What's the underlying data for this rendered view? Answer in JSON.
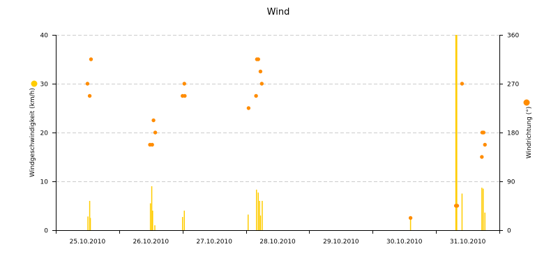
{
  "chart_data": {
    "type": "bar",
    "title": "Wind",
    "ylabel": "Windgeschwindigkeit (km/h)",
    "y2label": "Windrichtung (°)",
    "ylim": [
      0,
      40
    ],
    "y2lim": [
      0,
      360
    ],
    "yticks": [
      0,
      10,
      20,
      30,
      40
    ],
    "y2ticks": [
      0,
      90,
      180,
      270,
      360
    ],
    "xlim": [
      "25.10.2010 00:00",
      "31.10.2010 23:59"
    ],
    "xtick_labels": [
      "25.10.2010",
      "26.10.2010",
      "27.10.2010",
      "28.10.2010",
      "29.10.2010",
      "30.10.2010",
      "31.10.2010"
    ],
    "grid": true,
    "legend": "axis markers (left: speed, right: direction)",
    "colors": {
      "speed": "#ffcc00",
      "direction": "#ff8c00",
      "grid": "#cccccc",
      "axis": "#000000"
    },
    "series": [
      {
        "type": "bar",
        "axis": "left",
        "values": [
          {
            "x": "25.10.2010 12:10",
            "y": 2.8
          },
          {
            "x": "25.10.2010 12:50",
            "y": 6.0
          },
          {
            "x": "25.10.2010 13:05",
            "y": 2.5
          },
          {
            "x": "26.10.2010 11:50",
            "y": 5.5
          },
          {
            "x": "26.10.2010 12:20",
            "y": 9.0
          },
          {
            "x": "26.10.2010 12:40",
            "y": 4.0
          },
          {
            "x": "26.10.2010 13:30",
            "y": 1.0
          },
          {
            "x": "27.10.2010 00:00",
            "y": 2.7
          },
          {
            "x": "27.10.2010 00:40",
            "y": 4.0
          },
          {
            "x": "28.10.2010 00:50",
            "y": 3.2
          },
          {
            "x": "28.10.2010 04:00",
            "y": 8.3
          },
          {
            "x": "28.10.2010 04:40",
            "y": 7.7
          },
          {
            "x": "28.10.2010 05:10",
            "y": 6.0
          },
          {
            "x": "28.10.2010 05:30",
            "y": 3.0
          },
          {
            "x": "28.10.2010 06:10",
            "y": 6.0
          },
          {
            "x": "30.10.2010 14:20",
            "y": 2.5
          },
          {
            "x": "31.10.2010 07:30",
            "y": 40.0
          },
          {
            "x": "31.10.2010 07:50",
            "y": 40.0
          },
          {
            "x": "31.10.2010 09:50",
            "y": 7.5
          },
          {
            "x": "31.10.2010 17:20",
            "y": 8.7
          },
          {
            "x": "31.10.2010 17:50",
            "y": 8.5
          },
          {
            "x": "31.10.2010 18:30",
            "y": 3.6
          }
        ]
      },
      {
        "type": "scatter",
        "axis": "right",
        "values": [
          {
            "x": "25.10.2010 12:00",
            "y": 270
          },
          {
            "x": "25.10.2010 12:50",
            "y": 247.5
          },
          {
            "x": "25.10.2010 13:20",
            "y": 315
          },
          {
            "x": "26.10.2010 11:40",
            "y": 157.5
          },
          {
            "x": "26.10.2010 12:30",
            "y": 157.5
          },
          {
            "x": "26.10.2010 13:00",
            "y": 202.5
          },
          {
            "x": "26.10.2010 13:40",
            "y": 180
          },
          {
            "x": "27.10.2010 00:00",
            "y": 247.5
          },
          {
            "x": "27.10.2010 00:40",
            "y": 270
          },
          {
            "x": "27.10.2010 00:50",
            "y": 247.5
          },
          {
            "x": "28.10.2010 01:00",
            "y": 225
          },
          {
            "x": "28.10.2010 03:50",
            "y": 247.5
          },
          {
            "x": "28.10.2010 04:10",
            "y": 315
          },
          {
            "x": "28.10.2010 04:40",
            "y": 315
          },
          {
            "x": "28.10.2010 05:30",
            "y": 292.5
          },
          {
            "x": "28.10.2010 06:00",
            "y": 270
          },
          {
            "x": "30.10.2010 14:20",
            "y": 22.5
          },
          {
            "x": "31.10.2010 07:30",
            "y": 45
          },
          {
            "x": "31.10.2010 08:00",
            "y": 45
          },
          {
            "x": "31.10.2010 09:50",
            "y": 270
          },
          {
            "x": "31.10.2010 17:20",
            "y": 135
          },
          {
            "x": "31.10.2010 17:30",
            "y": 180
          },
          {
            "x": "31.10.2010 18:00",
            "y": 180
          },
          {
            "x": "31.10.2010 18:30",
            "y": 157.5
          }
        ]
      }
    ]
  }
}
